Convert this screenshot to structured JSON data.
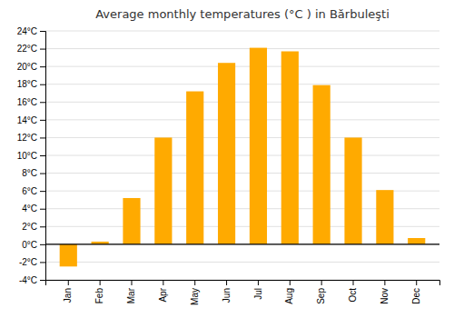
{
  "chart_data": {
    "type": "bar",
    "title": "Average monthly temperatures (°C ) in Bărbuleşti",
    "categories": [
      "Jan",
      "Feb",
      "Mar",
      "Apr",
      "May",
      "Jun",
      "Jul",
      "Aug",
      "Sep",
      "Oct",
      "Nov",
      "Dec"
    ],
    "values": [
      -2.5,
      0.3,
      5.2,
      12.0,
      17.2,
      20.4,
      22.1,
      21.7,
      17.9,
      12.0,
      6.1,
      0.7
    ],
    "color": "#FFAA00",
    "ylim": [
      -4,
      24
    ],
    "yticks": [
      {
        "value": -4,
        "label": "-4°C"
      },
      {
        "value": -2,
        "label": "-2°C"
      },
      {
        "value": 0,
        "label": "0°C"
      },
      {
        "value": 2,
        "label": "2°C"
      },
      {
        "value": 4,
        "label": "4°C"
      },
      {
        "value": 6,
        "label": "6°C"
      },
      {
        "value": 8,
        "label": "8°C"
      },
      {
        "value": 10,
        "label": "10°C"
      },
      {
        "value": 12,
        "label": "12°C"
      },
      {
        "value": 14,
        "label": "14°C"
      },
      {
        "value": 16,
        "label": "16°C"
      },
      {
        "value": 18,
        "label": "18°C"
      },
      {
        "value": 20,
        "label": "20°C"
      },
      {
        "value": 22,
        "label": "22°C"
      },
      {
        "value": 24,
        "label": "24°C"
      }
    ],
    "grid": true
  }
}
